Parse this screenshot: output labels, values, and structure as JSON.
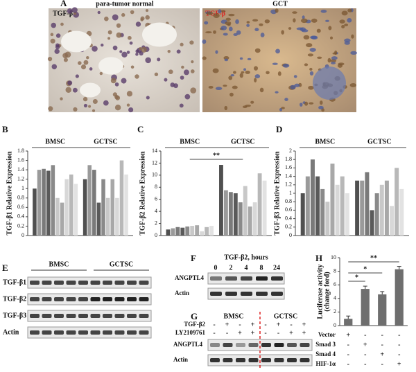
{
  "panel_labels": [
    "A",
    "B",
    "C",
    "D",
    "E",
    "F",
    "G",
    "H"
  ],
  "panel_a": {
    "left": {
      "stain": "TGF-β",
      "title": "para-tumor normal"
    },
    "right": {
      "stain": "TGF-β",
      "title": "GCT"
    }
  },
  "chart_data": [
    {
      "type": "bar",
      "ylabel": "TGF-β1 Relative Expression",
      "groups": [
        {
          "name": "BMSC",
          "values": [
            1.0,
            1.4,
            1.42,
            1.38,
            1.5,
            0.8,
            0.7,
            1.2,
            1.3,
            1.1
          ]
        },
        {
          "name": "GCTSC",
          "values": [
            1.2,
            1.5,
            1.4,
            0.7,
            1.2,
            0.8,
            1.2,
            0.8,
            1.6,
            1.3
          ]
        }
      ],
      "colors": [
        "#505050",
        "#9a9a9a",
        "#7a7a7a",
        "#5a5a5a",
        "#8a8a8a",
        "#c8c8c8",
        "#a8a8a8",
        "#d8d8d8",
        "#b8b8b8",
        "#e2e2e2"
      ],
      "ylim": [
        0,
        1.8
      ],
      "yticks": [
        0,
        0.2,
        0.4,
        0.6,
        0.8,
        1,
        1.2,
        1.4,
        1.6,
        1.8
      ]
    },
    {
      "type": "bar",
      "ylabel": "TGF-β2 Relative Expression",
      "annotation": "**",
      "groups": [
        {
          "name": "BMSC",
          "values": [
            1.0,
            1.2,
            1.4,
            1.3,
            1.5,
            1.6,
            1.7,
            0.7,
            1.4,
            1.6
          ]
        },
        {
          "name": "GCTSC",
          "values": [
            11.7,
            7.5,
            7.2,
            7.0,
            5.5,
            8.2,
            4.8,
            5.5,
            10.3,
            9.1
          ]
        }
      ],
      "colors": [
        "#505050",
        "#9a9a9a",
        "#7a7a7a",
        "#5a5a5a",
        "#8a8a8a",
        "#c8c8c8",
        "#a8a8a8",
        "#d8d8d8",
        "#b8b8b8",
        "#e2e2e2"
      ],
      "ylim": [
        0,
        14
      ],
      "yticks": [
        0,
        2,
        4,
        6,
        8,
        10,
        12,
        14
      ]
    },
    {
      "type": "bar",
      "ylabel": "TGF-β3 Relative Expression",
      "groups": [
        {
          "name": "BMSC",
          "values": [
            1.0,
            1.4,
            1.8,
            1.4,
            1.1,
            0.8,
            1.7,
            1.2,
            1.4,
            1.0
          ]
        },
        {
          "name": "GCTSC",
          "values": [
            1.3,
            1.3,
            1.5,
            0.6,
            1.0,
            1.2,
            1.3,
            0.7,
            1.6,
            1.1
          ]
        }
      ],
      "colors": [
        "#505050",
        "#9a9a9a",
        "#7a7a7a",
        "#5a5a5a",
        "#8a8a8a",
        "#c8c8c8",
        "#a8a8a8",
        "#d8d8d8",
        "#b8b8b8",
        "#e2e2e2"
      ],
      "ylim": [
        0,
        2
      ],
      "yticks": [
        0,
        0.2,
        0.4,
        0.6,
        0.8,
        1,
        1.2,
        1.4,
        1.6,
        1.8,
        2
      ]
    },
    {
      "type": "simple",
      "ylabel": [
        "Luciferase activity",
        "(change ford)"
      ],
      "values": [
        1.0,
        5.4,
        4.6,
        8.3
      ],
      "color": "#6e6e6e",
      "ylim": [
        0,
        10
      ],
      "yticks": [
        0,
        2,
        4,
        6,
        8,
        10
      ],
      "annotations": [
        "*",
        "*",
        "**"
      ],
      "conditions": [
        {
          "label": "Vector",
          "signs": [
            "+",
            "-",
            "-",
            "-"
          ]
        },
        {
          "label": "Smad 3",
          "signs": [
            "-",
            "+",
            "-",
            "-"
          ]
        },
        {
          "label": "Smad 4",
          "signs": [
            "-",
            "-",
            "+",
            "-"
          ]
        },
        {
          "label": "HIF-1α",
          "signs": [
            "-",
            "-",
            "-",
            "+"
          ]
        }
      ]
    }
  ],
  "panel_e": {
    "groups": [
      "BMSC",
      "GCTSC"
    ],
    "rows": [
      "TGF-β1",
      "TGF-β2",
      "TGF-β3",
      "Actin"
    ]
  },
  "panel_f": {
    "title": "TGF-β2, hours",
    "lanes": [
      "0",
      "2",
      "4",
      "8",
      "24"
    ],
    "rows": [
      "ANGPTL4",
      "Actin"
    ]
  },
  "panel_g": {
    "groups": [
      "BMSC",
      "GCTSC"
    ],
    "treatments": [
      {
        "label": "TGF-β2",
        "signs": [
          "-",
          "+",
          "-",
          "+",
          "-",
          "+",
          "-",
          "+"
        ]
      },
      {
        "label": "LY2109761",
        "signs": [
          "-",
          "-",
          "+",
          "+",
          "-",
          "-",
          "+",
          "+"
        ]
      }
    ],
    "rows": [
      "ANGPTL4",
      "Actin"
    ]
  }
}
